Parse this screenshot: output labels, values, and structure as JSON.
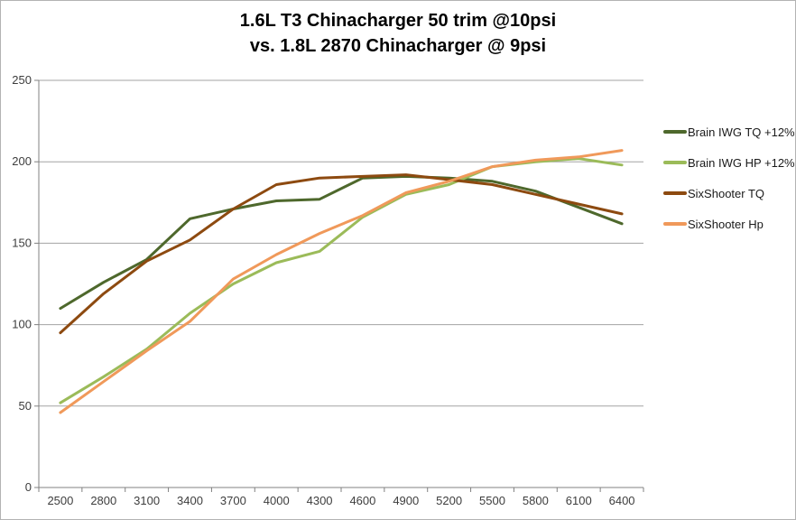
{
  "title": {
    "line1": "1.6L T3 Chinacharger 50 trim @10psi",
    "line2": "vs. 1.8L 2870 Chinacharger @ 9psi"
  },
  "colors": {
    "grid": "#a3a3a3",
    "axis": "#808080",
    "tick_label": "#3d3d3d",
    "border": "#b3b3b3",
    "background": "#ffffff"
  },
  "chart_data": {
    "type": "line",
    "title": "1.6L T3 Chinacharger 50 trim @10psi vs. 1.8L 2870 Chinacharger @ 9psi",
    "x": [
      2500,
      2800,
      3100,
      3400,
      3700,
      4000,
      4300,
      4600,
      4900,
      5200,
      5500,
      5800,
      6100,
      6400
    ],
    "series": [
      {
        "name": "Brain IWG TQ +12%",
        "color": "#4e682c",
        "values": [
          110,
          126,
          140,
          165,
          171,
          176,
          177,
          190,
          191,
          190,
          188,
          182,
          172,
          162
        ]
      },
      {
        "name": "Brain IWG HP +12%",
        "color": "#9bbb59",
        "values": [
          52,
          68,
          85,
          107,
          125,
          138,
          145,
          166,
          180,
          186,
          197,
          200,
          202,
          198
        ]
      },
      {
        "name": "SixShooter TQ",
        "color": "#8d4a10",
        "values": [
          95,
          119,
          139,
          152,
          171,
          186,
          190,
          191,
          192,
          189,
          186,
          180,
          174,
          168
        ]
      },
      {
        "name": "SixShooter Hp",
        "color": "#f0995a",
        "values": [
          46,
          65,
          84,
          102,
          128,
          143,
          156,
          167,
          181,
          188,
          197,
          201,
          203,
          207
        ]
      }
    ],
    "ylim": [
      0,
      250
    ],
    "ytick_step": 50,
    "xlabel": "",
    "ylabel": "",
    "grid": true,
    "legend_position": "right"
  }
}
